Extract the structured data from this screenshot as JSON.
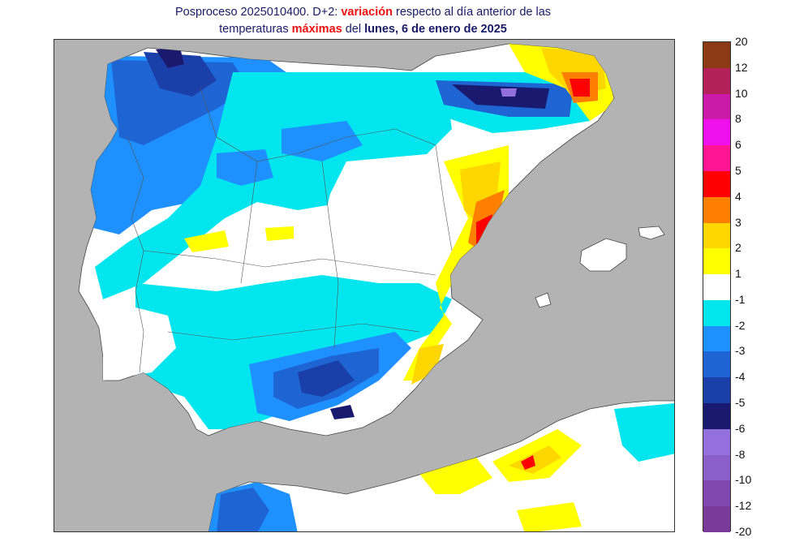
{
  "title": {
    "line1_prefix": "Posproceso 2025010400. D+2: ",
    "line1_highlight": "variación",
    "line1_suffix": " respecto al día anterior de las",
    "line2_prefix": "temperaturas ",
    "line2_highlight": "máximas",
    "line2_middle": " del ",
    "line2_date": "lunes, 6 de enero de 2025"
  },
  "colors": {
    "land_no_data": "#b3b3b3",
    "sea": "#b3b3b3",
    "border": "#333333",
    "title_text": "#1a1a66",
    "title_highlight": "#ee1111"
  },
  "legend": {
    "labels": [
      "20",
      "12",
      "10",
      "8",
      "6",
      "5",
      "4",
      "3",
      "2",
      "1",
      "-1",
      "-2",
      "-3",
      "-4",
      "-5",
      "-6",
      "-8",
      "-10",
      "-12",
      "-20"
    ],
    "bins": [
      {
        "range": "12 to 20",
        "color": "#8b3a14"
      },
      {
        "range": "10 to 12",
        "color": "#b3205a"
      },
      {
        "range": "8 to 10",
        "color": "#cc1aa8"
      },
      {
        "range": "6 to 8",
        "color": "#ee11ee"
      },
      {
        "range": "5 to 6",
        "color": "#ff1493"
      },
      {
        "range": "4 to 5",
        "color": "#ff0000"
      },
      {
        "range": "3 to 4",
        "color": "#ff8000"
      },
      {
        "range": "2 to 3",
        "color": "#ffd700"
      },
      {
        "range": "1 to 2",
        "color": "#ffff00"
      },
      {
        "range": "-1 to 1",
        "color": "#ffffff"
      },
      {
        "range": "-2 to -1",
        "color": "#00e5ee"
      },
      {
        "range": "-3 to -2",
        "color": "#1e90ff"
      },
      {
        "range": "-4 to -3",
        "color": "#1e64d2"
      },
      {
        "range": "-5 to -4",
        "color": "#1a3fa8"
      },
      {
        "range": "-6 to -5",
        "color": "#191970"
      },
      {
        "range": "-8 to -6",
        "color": "#9370db"
      },
      {
        "range": "-10 to -8",
        "color": "#8a5fc8"
      },
      {
        "range": "-12 to -10",
        "color": "#8048b0"
      },
      {
        "range": "-20 to -12",
        "color": "#7a3a9a"
      }
    ]
  }
}
